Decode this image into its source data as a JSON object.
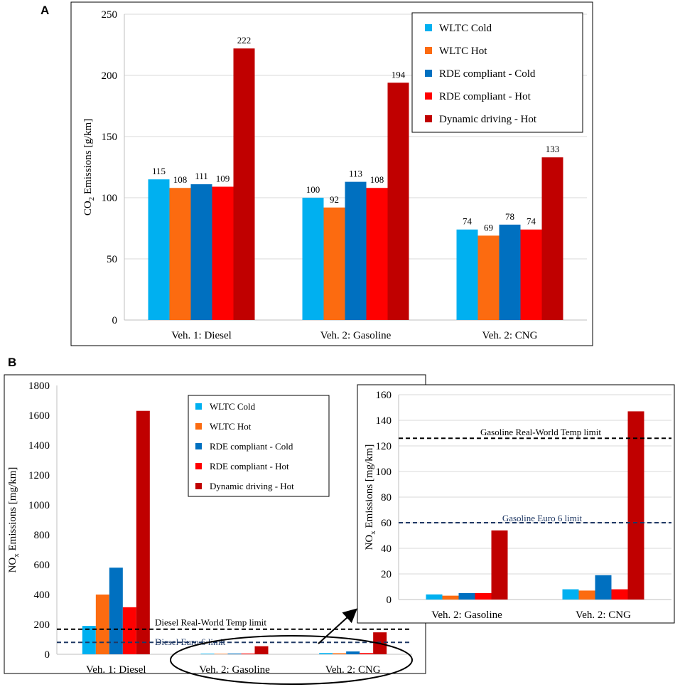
{
  "panels": {
    "a": {
      "letter": "A"
    },
    "b": {
      "letter": "B"
    }
  },
  "colors": {
    "wltc_cold": "#00b0f0",
    "wltc_hot": "#fc6b10",
    "rde_cold": "#0070c0",
    "rde_hot": "#ff0000",
    "dynamic_hot": "#c00000",
    "euro6_line": "#1f3864",
    "rwt_line": "#000000"
  },
  "legend": [
    {
      "label": "WLTC Cold",
      "color_key": "wltc_cold"
    },
    {
      "label": "WLTC Hot",
      "color_key": "wltc_hot"
    },
    {
      "label": "RDE compliant - Cold",
      "color_key": "rde_cold"
    },
    {
      "label": "RDE compliant - Hot",
      "color_key": "rde_hot"
    },
    {
      "label": "Dynamic driving - Hot",
      "color_key": "dynamic_hot"
    }
  ],
  "chart_data": [
    {
      "id": "A",
      "type": "bar",
      "ylabel_main": "CO",
      "ylabel_sub": "2",
      "ylabel_rest": " Emissions [g/km]",
      "ylim": [
        0,
        250
      ],
      "yticks": [
        0,
        50,
        100,
        150,
        200,
        250
      ],
      "categories": [
        "Veh. 1: Diesel",
        "Veh. 2: Gasoline",
        "Veh. 2: CNG"
      ],
      "series": [
        {
          "name": "WLTC Cold",
          "values": [
            115,
            100,
            74
          ]
        },
        {
          "name": "WLTC Hot",
          "values": [
            108,
            92,
            69
          ]
        },
        {
          "name": "RDE compliant - Cold",
          "values": [
            111,
            113,
            78
          ]
        },
        {
          "name": "RDE compliant - Hot",
          "values": [
            109,
            108,
            74
          ]
        },
        {
          "name": "Dynamic driving - Hot",
          "values": [
            222,
            194,
            133
          ]
        }
      ],
      "legend_position": "top-right"
    },
    {
      "id": "B-main",
      "type": "bar",
      "ylabel_main": "NO",
      "ylabel_sub": "x",
      "ylabel_rest": " Emissions [mg/km]",
      "ylim": [
        0,
        1800
      ],
      "yticks": [
        0,
        200,
        400,
        600,
        800,
        1000,
        1200,
        1400,
        1600,
        1800
      ],
      "categories": [
        "Veh. 1: Diesel",
        "Veh. 2: Gasoline",
        "Veh. 2: CNG"
      ],
      "series": [
        {
          "name": "WLTC Cold",
          "values": [
            190,
            4,
            8
          ]
        },
        {
          "name": "WLTC Hot",
          "values": [
            400,
            3,
            7
          ]
        },
        {
          "name": "RDE compliant - Cold",
          "values": [
            580,
            5,
            19
          ]
        },
        {
          "name": "RDE compliant - Hot",
          "values": [
            315,
            5,
            8
          ]
        },
        {
          "name": "Dynamic driving - Hot",
          "values": [
            1630,
            54,
            147
          ]
        }
      ],
      "limits": [
        {
          "label": "Diesel Real-World Temp limit",
          "value": 168,
          "color_key": "rwt_line"
        },
        {
          "label": "Diesel Euro 6 limit",
          "value": 80,
          "color_key": "euro6_line"
        }
      ],
      "legend_position": "top-center"
    },
    {
      "id": "B-inset",
      "type": "bar",
      "ylabel_main": "NO",
      "ylabel_sub": "x",
      "ylabel_rest": " Emissions [mg/km]",
      "ylim": [
        0,
        160
      ],
      "yticks": [
        0,
        20,
        40,
        60,
        80,
        100,
        120,
        140,
        160
      ],
      "categories": [
        "Veh. 2: Gasoline",
        "Veh. 2: CNG"
      ],
      "series": [
        {
          "name": "WLTC Cold",
          "values": [
            4,
            8
          ]
        },
        {
          "name": "WLTC Hot",
          "values": [
            3,
            7
          ]
        },
        {
          "name": "RDE compliant - Cold",
          "values": [
            5,
            19
          ]
        },
        {
          "name": "RDE compliant - Hot",
          "values": [
            5,
            8
          ]
        },
        {
          "name": "Dynamic driving - Hot",
          "values": [
            54,
            147
          ]
        }
      ],
      "limits": [
        {
          "label": "Gasoline Real-World Temp limit",
          "value": 126,
          "color_key": "rwt_line"
        },
        {
          "label": "Gasoline Euro 6 limit",
          "value": 60,
          "color_key": "euro6_line"
        }
      ]
    }
  ]
}
